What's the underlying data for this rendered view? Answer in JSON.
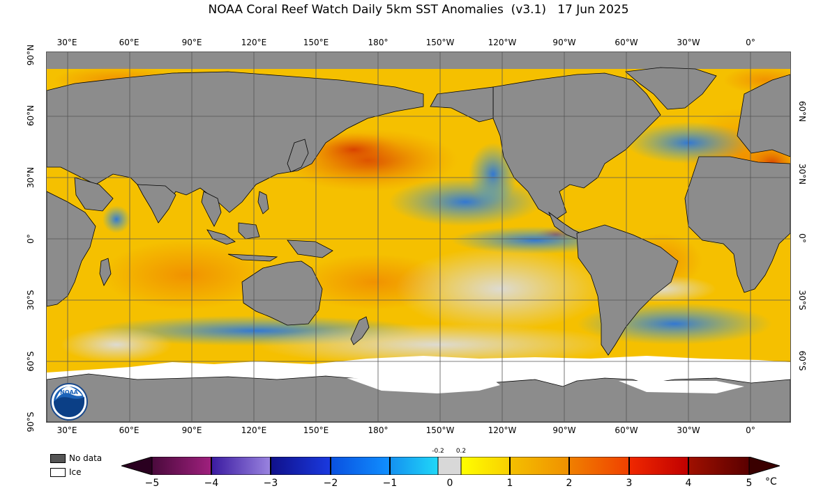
{
  "title": "NOAA Coral Reef Watch Daily 5km SST Anomalies  (v3.1)   17 Jun 2025",
  "longitude_labels": [
    "30°E",
    "60°E",
    "90°E",
    "120°E",
    "150°E",
    "180°",
    "150°W",
    "120°W",
    "90°W",
    "60°W",
    "30°W",
    "0°"
  ],
  "latitude_labels_left": [
    "90°N",
    "60°N",
    "30°N",
    "0°",
    "30°S",
    "60°S",
    "90°S"
  ],
  "latitude_labels_right": [
    "60°N",
    "30°N",
    "0°",
    "30°S",
    "60°S"
  ],
  "legend": {
    "no_data_label": "No data",
    "ice_label": "Ice",
    "no_data_color": "#555555",
    "ice_color": "#ffffff"
  },
  "colorbar": {
    "tick_labels": [
      "−5",
      "−4",
      "−3",
      "−2",
      "−1",
      "0",
      "1",
      "2",
      "3",
      "4",
      "5"
    ],
    "small_tick_labels": [
      "-0.2",
      "0.2"
    ],
    "unit": "°C",
    "colors": {
      "deep_purple": "#4a0a3c",
      "purple": "#9b1c8c",
      "violet": "#7a5ad6",
      "dark_blue": "#1a1a9e",
      "blue": "#1066ff",
      "light_blue": "#1aaaf0",
      "neutral": "#d8d8d8",
      "yellow": "#fbe600",
      "orange": "#f4a000",
      "dark_orange": "#f06000",
      "red": "#e02000",
      "dark_red": "#6a0000"
    }
  },
  "map_colors": {
    "land": "#8c8c8c",
    "ocean_base": "#f5c000",
    "warm": "#f08a00",
    "hot": "#d63a00",
    "cool": "#2ea0f0",
    "cold": "#2050d0",
    "ice": "#ffffff",
    "neutral": "#d9d9d9"
  },
  "logo_text": "NOAA"
}
